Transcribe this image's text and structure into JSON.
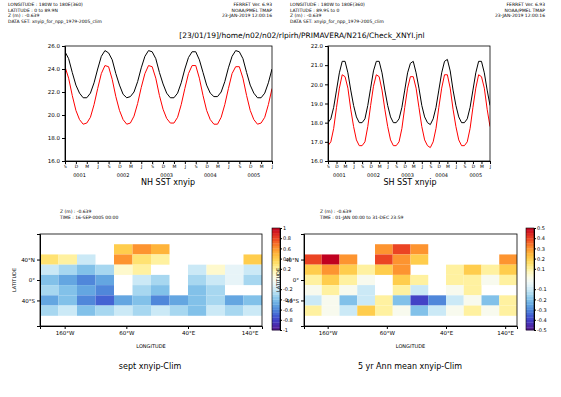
{
  "page_title": "[23/01/19]/home/n02/n02/rlpirh/PRIMAVERA/N216/Check_XNYI.jnl",
  "chart_data": [
    {
      "type": "line",
      "title": "NH SST xnyip",
      "info": [
        "LONGITUDE : 180W to 180E(360)",
        "LATITUDE : 0 to 89.9N",
        "Z (m) : -0.639",
        "DATA SET: xnyip_for_npp_1979-2005_clim"
      ],
      "stamp": [
        "FERRET Ver. 6.93",
        "NOAA/PMEL TMAP",
        "23-JAN-2019 12:00:16"
      ],
      "x": [
        0,
        1,
        2,
        3,
        4,
        5,
        6,
        7,
        8,
        9,
        10,
        11,
        12,
        13,
        14,
        15,
        16,
        17,
        18,
        19,
        20,
        21,
        22,
        23,
        24,
        25,
        26,
        27,
        28,
        29,
        30,
        31,
        32,
        33,
        34,
        35,
        36,
        37,
        38,
        39,
        40,
        41,
        42,
        43,
        44,
        45,
        46,
        47,
        48,
        49,
        50,
        51,
        52,
        53,
        54,
        55,
        56,
        57
      ],
      "xlim": [
        0,
        57
      ],
      "xticks": [
        {
          "value": 0,
          "label": "S"
        },
        {
          "value": 3,
          "label": "D"
        },
        {
          "value": 6,
          "label": "M"
        },
        {
          "value": 9,
          "label": "J"
        },
        {
          "value": 12,
          "label": "S"
        },
        {
          "value": 15,
          "label": "D"
        },
        {
          "value": 18,
          "label": "M"
        },
        {
          "value": 21,
          "label": "J"
        },
        {
          "value": 24,
          "label": "S"
        },
        {
          "value": 27,
          "label": "D"
        },
        {
          "value": 30,
          "label": "M"
        },
        {
          "value": 33,
          "label": "J"
        },
        {
          "value": 36,
          "label": "S"
        },
        {
          "value": 39,
          "label": "D"
        },
        {
          "value": 42,
          "label": "M"
        },
        {
          "value": 45,
          "label": "J"
        },
        {
          "value": 48,
          "label": "S"
        },
        {
          "value": 51,
          "label": "D"
        },
        {
          "value": 54,
          "label": "M"
        },
        {
          "value": 57,
          "label": "J"
        }
      ],
      "year_labels": [
        {
          "value": 4,
          "label": "0001"
        },
        {
          "value": 16,
          "label": "0002"
        },
        {
          "value": 28,
          "label": "0003"
        },
        {
          "value": 40,
          "label": "0004"
        },
        {
          "value": 52,
          "label": "0005"
        }
      ],
      "ylim": [
        16,
        26
      ],
      "yticks": [
        {
          "value": 16,
          "label": "16.0"
        },
        {
          "value": 18,
          "label": "18.0"
        },
        {
          "value": 20,
          "label": "20.0"
        },
        {
          "value": 22,
          "label": "22.0"
        },
        {
          "value": 24,
          "label": "24.0"
        },
        {
          "value": 26,
          "label": "26.0"
        }
      ],
      "series": [
        {
          "color": "#000000",
          "values": [
            25.5,
            24.9,
            23.7,
            22.6,
            21.9,
            21.5,
            21.5,
            21.9,
            22.8,
            24.0,
            25.1,
            25.6,
            25.4,
            24.8,
            23.6,
            22.6,
            21.8,
            21.5,
            21.6,
            22.0,
            22.9,
            24.1,
            25.1,
            25.6,
            25.5,
            24.9,
            23.7,
            22.7,
            21.9,
            21.5,
            21.5,
            21.9,
            22.8,
            24.0,
            25.0,
            25.5,
            25.5,
            24.8,
            23.7,
            22.6,
            21.9,
            21.6,
            21.6,
            22.0,
            22.9,
            24.1,
            25.1,
            25.6,
            25.5,
            24.9,
            23.7,
            22.6,
            21.9,
            21.5,
            21.5,
            21.9,
            22.8,
            24.0
          ]
        },
        {
          "color": "#ff0000",
          "values": [
            24.2,
            23.2,
            21.7,
            20.4,
            19.6,
            19.2,
            19.3,
            19.8,
            20.9,
            22.3,
            23.6,
            24.3,
            24.2,
            23.1,
            21.6,
            20.4,
            19.6,
            19.2,
            19.3,
            19.9,
            21.0,
            22.4,
            23.6,
            24.3,
            24.2,
            23.2,
            21.7,
            20.5,
            19.7,
            19.3,
            19.3,
            19.8,
            20.9,
            22.3,
            23.6,
            24.3,
            24.3,
            23.2,
            21.7,
            20.4,
            19.6,
            19.2,
            19.2,
            19.8,
            20.9,
            22.3,
            23.6,
            24.2,
            24.2,
            23.2,
            21.7,
            20.4,
            19.6,
            19.2,
            19.3,
            19.8,
            20.9,
            22.3
          ]
        }
      ]
    },
    {
      "type": "line",
      "title": "SH SST xnyip",
      "info": [
        "LONGITUDE : 180W to 180E(360)",
        "LATITUDE : 89.9S to 0",
        "Z (m) : -0.639",
        "DATA SET: xnyip_for_npp_1979-2005_clim"
      ],
      "stamp": [
        "FERRET Ver. 6.93",
        "NOAA/PMEL TMAP",
        "23-JAN-2019 12:00:16"
      ],
      "x": [
        0,
        1,
        2,
        3,
        4,
        5,
        6,
        7,
        8,
        9,
        10,
        11,
        12,
        13,
        14,
        15,
        16,
        17,
        18,
        19,
        20,
        21,
        22,
        23,
        24,
        25,
        26,
        27,
        28,
        29,
        30,
        31,
        32,
        33,
        34,
        35,
        36,
        37,
        38,
        39,
        40,
        41,
        42,
        43,
        44,
        45,
        46,
        47,
        48,
        49,
        50,
        51,
        52,
        53,
        54,
        55,
        56,
        57
      ],
      "xlim": [
        0,
        57
      ],
      "xticks": [
        {
          "value": 0,
          "label": "S"
        },
        {
          "value": 3,
          "label": "D"
        },
        {
          "value": 6,
          "label": "M"
        },
        {
          "value": 9,
          "label": "J"
        },
        {
          "value": 12,
          "label": "S"
        },
        {
          "value": 15,
          "label": "D"
        },
        {
          "value": 18,
          "label": "M"
        },
        {
          "value": 21,
          "label": "J"
        },
        {
          "value": 24,
          "label": "S"
        },
        {
          "value": 27,
          "label": "D"
        },
        {
          "value": 30,
          "label": "M"
        },
        {
          "value": 33,
          "label": "J"
        },
        {
          "value": 36,
          "label": "S"
        },
        {
          "value": 39,
          "label": "D"
        },
        {
          "value": 42,
          "label": "M"
        },
        {
          "value": 45,
          "label": "J"
        },
        {
          "value": 48,
          "label": "S"
        },
        {
          "value": 51,
          "label": "D"
        },
        {
          "value": 54,
          "label": "M"
        },
        {
          "value": 57,
          "label": "J"
        }
      ],
      "year_labels": [
        {
          "value": 4,
          "label": "0001"
        },
        {
          "value": 16,
          "label": "0002"
        },
        {
          "value": 28,
          "label": "0003"
        },
        {
          "value": 40,
          "label": "0004"
        },
        {
          "value": 52,
          "label": "0005"
        }
      ],
      "ylim": [
        16,
        22
      ],
      "yticks": [
        {
          "value": 16,
          "label": "16.0"
        },
        {
          "value": 17,
          "label": "17.0"
        },
        {
          "value": 18,
          "label": "18.0"
        },
        {
          "value": 19,
          "label": "19.0"
        },
        {
          "value": 20,
          "label": "20.0"
        },
        {
          "value": 21,
          "label": "21.0"
        },
        {
          "value": 22,
          "label": "22.0"
        }
      ],
      "series": [
        {
          "color": "#000000",
          "values": [
            18.0,
            18.2,
            18.8,
            19.7,
            20.6,
            21.2,
            21.2,
            20.6,
            19.7,
            18.9,
            18.3,
            18.0,
            18.0,
            18.2,
            18.9,
            19.8,
            20.7,
            21.2,
            21.2,
            20.6,
            19.7,
            18.9,
            18.3,
            18.0,
            18.0,
            18.2,
            18.8,
            19.7,
            20.6,
            21.1,
            21.2,
            20.6,
            19.8,
            18.9,
            18.3,
            18.0,
            17.9,
            18.2,
            18.8,
            19.7,
            20.6,
            21.2,
            21.3,
            20.7,
            19.7,
            18.9,
            18.3,
            18.0,
            18.0,
            18.2,
            18.8,
            19.7,
            20.6,
            21.2,
            21.2,
            20.6,
            19.7,
            18.9
          ]
        },
        {
          "color": "#ff0000",
          "values": [
            16.8,
            17.0,
            17.7,
            18.8,
            19.8,
            20.5,
            20.4,
            19.8,
            18.7,
            17.8,
            17.1,
            16.8,
            16.8,
            17.0,
            17.8,
            18.9,
            19.9,
            20.5,
            20.4,
            19.7,
            18.7,
            17.8,
            17.1,
            16.8,
            16.8,
            17.0,
            17.7,
            18.8,
            19.8,
            20.4,
            20.4,
            19.8,
            18.8,
            17.8,
            17.1,
            16.8,
            16.7,
            17.0,
            17.7,
            18.8,
            19.8,
            20.5,
            20.5,
            19.8,
            18.7,
            17.8,
            17.1,
            16.8,
            16.8,
            17.0,
            17.7,
            18.8,
            19.8,
            20.5,
            20.4,
            19.8,
            18.7,
            17.8
          ]
        }
      ]
    },
    {
      "type": "heatmap",
      "title": "sept xnyip-Clim",
      "info": [
        "Z (m) : -0.639",
        "TIME : 16-SEP-0005 00:00"
      ],
      "xlabel": "LONGITUDE",
      "ylabel": "LATITUDE",
      "xlim": [
        -200,
        160
      ],
      "ylim": [
        -90,
        90
      ],
      "xticks": [
        {
          "value": -160,
          "label": "160°W"
        },
        {
          "value": -60,
          "label": "60°W"
        },
        {
          "value": 40,
          "label": "40°E"
        },
        {
          "value": 140,
          "label": "140°E"
        }
      ],
      "yticks": [
        {
          "value": -40,
          "label": "40°S"
        },
        {
          "value": 0,
          "label": "0°"
        },
        {
          "value": 40,
          "label": "40°N"
        }
      ],
      "x": [
        -185,
        -155,
        -125,
        -95,
        -65,
        -35,
        -5,
        25,
        55,
        85,
        115,
        145
      ],
      "y": [
        80,
        60,
        40,
        20,
        0,
        -20,
        -40,
        -60,
        -80
      ],
      "cells": [
        [
          null,
          null,
          null,
          null,
          null,
          null,
          null,
          null,
          null,
          null,
          null,
          null
        ],
        [
          null,
          null,
          null,
          null,
          0.4,
          0.6,
          0.5,
          null,
          null,
          null,
          null,
          null
        ],
        [
          0.3,
          0.2,
          -0.2,
          null,
          0.6,
          0.3,
          0.2,
          null,
          null,
          null,
          null,
          0.4
        ],
        [
          -0.2,
          -0.3,
          -0.4,
          -0.3,
          0.1,
          0.2,
          null,
          null,
          -0.2,
          0.1,
          -0.1,
          -0.2
        ],
        [
          -0.4,
          -0.5,
          -0.6,
          -0.5,
          null,
          -0.2,
          -0.3,
          null,
          -0.3,
          -0.2,
          -0.1,
          -0.3
        ],
        [
          -0.3,
          -0.4,
          -0.5,
          -0.6,
          null,
          -0.3,
          -0.4,
          null,
          -0.4,
          -0.3,
          null,
          null
        ],
        [
          -0.5,
          -0.4,
          -0.6,
          -0.7,
          -0.5,
          -0.4,
          -0.6,
          -0.5,
          -0.4,
          -0.3,
          -0.5,
          -0.4
        ],
        [
          -0.3,
          -0.2,
          -0.4,
          -0.3,
          -0.2,
          -0.3,
          -0.2,
          -0.3,
          -0.4,
          -0.2,
          -0.3,
          -0.2
        ],
        [
          null,
          null,
          null,
          null,
          null,
          null,
          null,
          null,
          null,
          null,
          null,
          null
        ]
      ],
      "colorbar": {
        "range": [
          -1,
          1
        ],
        "ticks": [
          -1,
          -0.8,
          -0.6,
          -0.4,
          -0.2,
          0.2,
          0.4,
          0.6,
          0.8,
          1
        ]
      }
    },
    {
      "type": "heatmap",
      "title": "5 yr Ann mean xnyip-Clim",
      "info": [
        "Z (m) : -0.639",
        "TIME : 01-JAN 00:00 to 31-DEC 23:59"
      ],
      "xlabel": "LONGITUDE",
      "ylabel": "LATITUDE",
      "xlim": [
        -200,
        160
      ],
      "ylim": [
        -90,
        90
      ],
      "xticks": [
        {
          "value": -160,
          "label": "160°W"
        },
        {
          "value": -60,
          "label": "60°W"
        },
        {
          "value": 40,
          "label": "40°E"
        },
        {
          "value": 140,
          "label": "140°E"
        }
      ],
      "yticks": [
        {
          "value": -40,
          "label": "40°S"
        },
        {
          "value": 0,
          "label": "0°"
        },
        {
          "value": 40,
          "label": "40°N"
        }
      ],
      "x": [
        -185,
        -155,
        -125,
        -95,
        -65,
        -35,
        -5,
        25,
        55,
        85,
        115,
        145
      ],
      "y": [
        80,
        60,
        40,
        20,
        0,
        -20,
        -40,
        -60,
        -80
      ],
      "cells": [
        [
          null,
          null,
          null,
          null,
          null,
          null,
          null,
          null,
          null,
          null,
          null,
          null
        ],
        [
          null,
          null,
          null,
          null,
          0.3,
          0.4,
          0.3,
          null,
          null,
          null,
          null,
          null
        ],
        [
          0.4,
          0.5,
          0.3,
          null,
          0.4,
          0.3,
          0.2,
          null,
          null,
          null,
          null,
          0.3
        ],
        [
          0.2,
          0.3,
          0.2,
          0.1,
          0.2,
          0.3,
          null,
          null,
          0.1,
          0.2,
          0.1,
          0.2
        ],
        [
          0.1,
          0.2,
          0.1,
          0.0,
          null,
          0.2,
          0.1,
          null,
          0.1,
          0.1,
          0.0,
          0.1
        ],
        [
          0.0,
          0.1,
          0.0,
          -0.1,
          null,
          0.1,
          -0.1,
          null,
          0.0,
          0.1,
          null,
          null
        ],
        [
          -0.1,
          0.0,
          -0.2,
          -0.1,
          0.1,
          -0.2,
          -0.4,
          -0.3,
          -0.1,
          0.0,
          -0.2,
          0.1
        ],
        [
          0.1,
          0.0,
          -0.1,
          0.2,
          0.1,
          0.0,
          -0.2,
          -0.1,
          0.0,
          0.1,
          0.0,
          0.1
        ],
        [
          null,
          null,
          null,
          null,
          null,
          null,
          null,
          null,
          null,
          null,
          null,
          null
        ]
      ],
      "colorbar": {
        "range": [
          -0.5,
          0.5
        ],
        "ticks": [
          -0.5,
          -0.4,
          -0.3,
          -0.2,
          -0.1,
          0.1,
          0.2,
          0.3,
          0.4,
          0.5
        ]
      }
    }
  ]
}
